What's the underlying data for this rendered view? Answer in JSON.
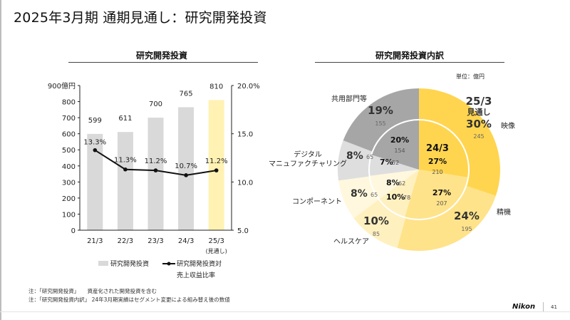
{
  "page": {
    "title": "2025年3月期 通期見通し：研究開発投資",
    "notes": [
      "注：「研究開発投資」　　資産化された開発投資を含む",
      "注：「研究開発投資内訳」 24年3月期実績はセグメント変更による組み替え後の数値"
    ],
    "logo": "Nikon",
    "page_number": "41"
  },
  "chart_data": [
    {
      "type": "bar",
      "title": "研究開発投資",
      "categories": [
        "21/3",
        "22/3",
        "23/3",
        "24/3",
        "25/3"
      ],
      "category_sublabels": [
        "",
        "",
        "",
        "",
        "(見通し)"
      ],
      "ylim": [
        0,
        900
      ],
      "yticks": [
        "0",
        "100",
        "200",
        "300",
        "400",
        "500",
        "600",
        "700",
        "800",
        "900億円"
      ],
      "y2lim": [
        5.0,
        20.0
      ],
      "y2ticks": [
        "5.0",
        "10.0",
        "15.0",
        "20.0%"
      ],
      "series": [
        {
          "name": "研究開発投資",
          "kind": "bar",
          "values": [
            599,
            611,
            700,
            765,
            810
          ],
          "labels": [
            "599",
            "611",
            "700",
            "765",
            "810"
          ],
          "colors": [
            "#d9d9d9",
            "#d9d9d9",
            "#d9d9d9",
            "#d9d9d9",
            "#fff2b3"
          ]
        },
        {
          "name": "研究開発投資対売上収益比率",
          "kind": "line",
          "axis": "right",
          "values": [
            13.3,
            11.3,
            11.2,
            10.7,
            11.2
          ],
          "labels": [
            "13.3%",
            "11.3%",
            "11.2%",
            "10.7%",
            "11.2%"
          ],
          "color": "#111111"
        }
      ],
      "legend": {
        "placement": "bottom",
        "bar_label": "研究開発投資",
        "line_label_1": "研究開発投資対",
        "line_label_2": "売上収益比率"
      },
      "grid": false
    },
    {
      "type": "pie",
      "subtype": "nested-donut",
      "title": "研究開発投資内訳",
      "unit": "単位：億円",
      "categories": [
        "映像",
        "精機",
        "ヘルスケア",
        "コンポーネント",
        "デジタルマニュファクチャリング",
        "共用部門等"
      ],
      "category_labels": [
        "映像",
        "精機",
        "ヘルスケア",
        "コンポーネント",
        "デジタル",
        "共用部門等"
      ],
      "category_labels_line2": [
        "",
        "",
        "",
        "",
        "マニュファクチャリング",
        ""
      ],
      "colors": [
        "#ffd54f",
        "#ffe38a",
        "#fff0bf",
        "#fff8de",
        "#dedede",
        "#a6a6a6"
      ],
      "inner": {
        "name": "24/3",
        "values": [
          210,
          207,
          78,
          62,
          52,
          154
        ],
        "percents": [
          "27%",
          "27%",
          "10%",
          "8%",
          "7%",
          "20%"
        ]
      },
      "outer": {
        "name": "25/3 見通し",
        "name_line1": "25/3",
        "name_line2": "見通し",
        "values": [
          245,
          195,
          85,
          65,
          65,
          155
        ],
        "percents": [
          "30%",
          "24%",
          "10%",
          "8%",
          "8%",
          "19%"
        ]
      },
      "start": "top",
      "direction": "clockwise"
    }
  ]
}
